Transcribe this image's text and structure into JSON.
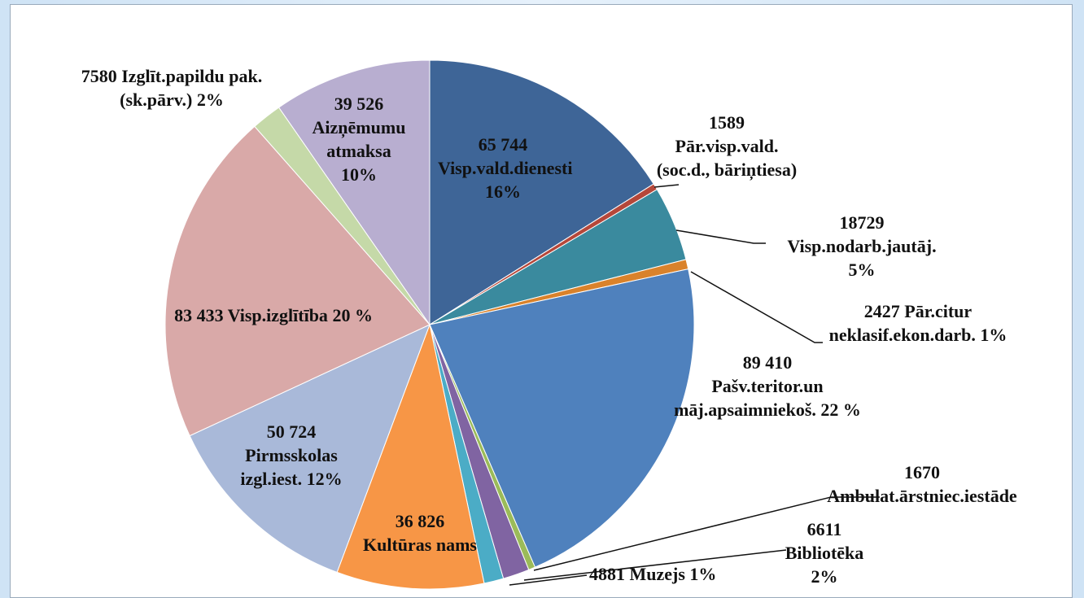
{
  "chart_data": {
    "type": "pie",
    "categories": [
      "Visp.vald.dienesti",
      "Pār.visp.vald.(soc.d., bāriņtiesa)",
      "Visp.nodarb.jautāj.",
      "Pār.citur neklasif.ekon.darb.",
      "Pašv.teritor.un māj.apsaimniekoš.",
      "Ambulat.ārstniec.iestāde",
      "Bibliotēka",
      "Muzejs",
      "Kultūras nams",
      "Pirmsskolas izgl.iest.",
      "Visp.izglītība",
      "Izglīt.papildu pak. (sk.pārv.)",
      "Aizņēmumu atmaksa"
    ],
    "values": [
      65744,
      1589,
      18729,
      2427,
      89410,
      1670,
      6611,
      4881,
      36826,
      50724,
      83433,
      7580,
      39526
    ],
    "value_labels": [
      "65 744",
      "1589",
      "18729",
      "2427",
      "89 410",
      "1670",
      "6611",
      "4881",
      "36 826",
      "50 724",
      "83 433",
      "7580",
      "39 526"
    ],
    "percents": [
      16,
      null,
      5,
      1,
      22,
      null,
      2,
      1,
      null,
      12,
      20,
      2,
      10
    ],
    "percent_labels": [
      "16%",
      null,
      "5%",
      "1%",
      "22 %",
      null,
      "2%",
      "1%",
      null,
      "12%",
      "20 %",
      "2%",
      "10%"
    ],
    "colors": [
      "#3e6597",
      "#b5473a",
      "#3a8a9e",
      "#d9822b",
      "#4f81bd",
      "#9bbb59",
      "#8064a2",
      "#4bacc6",
      "#f79646",
      "#a9b9d9",
      "#d9a9a8",
      "#c5d9a8",
      "#b8aed0"
    ]
  }
}
